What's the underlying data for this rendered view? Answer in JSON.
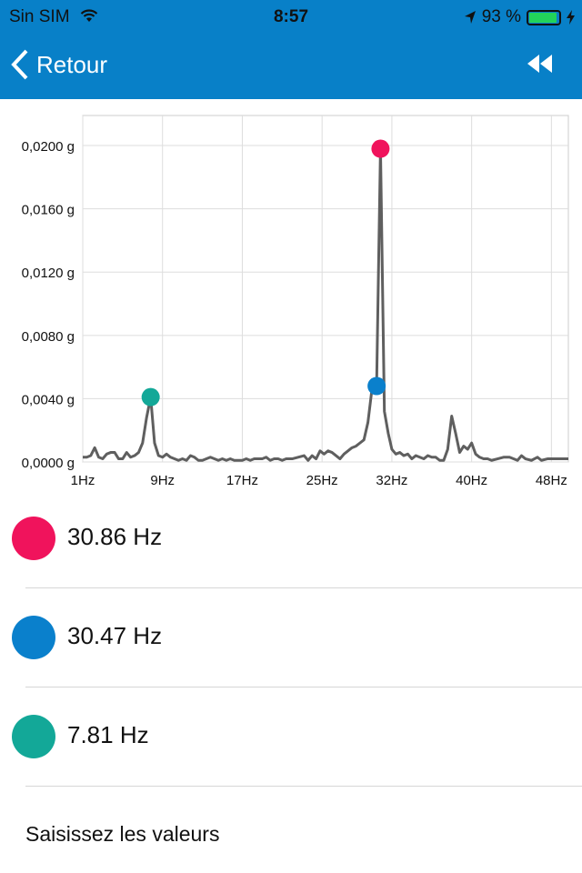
{
  "status_bar": {
    "carrier": "Sin SIM",
    "time": "8:57",
    "battery": "93 %",
    "battery_level": 0.93
  },
  "nav": {
    "back_label": "Retour",
    "rewind_icon": "rewind-icon"
  },
  "colors": {
    "header": "#0880C8",
    "peak1": "#F0135C",
    "peak2": "#0A80CC",
    "peak3": "#13A898",
    "line": "#5f5f5f"
  },
  "chart_data": {
    "type": "line",
    "title": "",
    "xlabel": "",
    "ylabel": "",
    "xlim": [
      1,
      49.7
    ],
    "ylim": [
      0,
      0.0219
    ],
    "x_ticks": [
      {
        "v": 1,
        "label": "1Hz"
      },
      {
        "v": 9,
        "label": "9Hz"
      },
      {
        "v": 17,
        "label": "17Hz"
      },
      {
        "v": 25,
        "label": "25Hz"
      },
      {
        "v": 32,
        "label": "32Hz"
      },
      {
        "v": 40,
        "label": "40Hz"
      },
      {
        "v": 48,
        "label": "48Hz"
      }
    ],
    "y_ticks": [
      {
        "v": 0,
        "label": "0,0000 g"
      },
      {
        "v": 0.004,
        "label": "0,0040 g"
      },
      {
        "v": 0.008,
        "label": "0,0080 g"
      },
      {
        "v": 0.012,
        "label": "0,0120 g"
      },
      {
        "v": 0.016,
        "label": "0,0160 g"
      },
      {
        "v": 0.02,
        "label": "0,0200 g"
      }
    ],
    "grid": true,
    "series": [
      {
        "name": "spectrum",
        "points": [
          [
            1,
            0.0003
          ],
          [
            1.4,
            0.0003
          ],
          [
            1.8,
            0.0004
          ],
          [
            2.2,
            0.0009
          ],
          [
            2.6,
            0.0003
          ],
          [
            3,
            0.0002
          ],
          [
            3.4,
            0.0005
          ],
          [
            3.8,
            0.0006
          ],
          [
            4.2,
            0.0006
          ],
          [
            4.6,
            0.0002
          ],
          [
            5,
            0.0002
          ],
          [
            5.4,
            0.0006
          ],
          [
            5.8,
            0.0003
          ],
          [
            6.2,
            0.0004
          ],
          [
            6.6,
            0.0006
          ],
          [
            7,
            0.0012
          ],
          [
            7.4,
            0.0028
          ],
          [
            7.81,
            0.0041
          ],
          [
            8.2,
            0.0012
          ],
          [
            8.6,
            0.0004
          ],
          [
            9,
            0.0003
          ],
          [
            9.4,
            0.0005
          ],
          [
            9.8,
            0.0003
          ],
          [
            10.2,
            0.0002
          ],
          [
            10.6,
            0.0001
          ],
          [
            11,
            0.0002
          ],
          [
            11.4,
            0.0001
          ],
          [
            11.8,
            0.0004
          ],
          [
            12.2,
            0.0003
          ],
          [
            12.6,
            0.0001
          ],
          [
            13,
            0.0001
          ],
          [
            13.4,
            0.0002
          ],
          [
            13.8,
            0.0003
          ],
          [
            14.2,
            0.0002
          ],
          [
            14.6,
            0.0001
          ],
          [
            15,
            0.0002
          ],
          [
            15.4,
            0.0001
          ],
          [
            15.8,
            0.0002
          ],
          [
            16.2,
            0.0001
          ],
          [
            16.6,
            0.0001
          ],
          [
            17,
            0.0001
          ],
          [
            17.4,
            0.0002
          ],
          [
            17.8,
            0.0001
          ],
          [
            18.2,
            0.0002
          ],
          [
            18.6,
            0.0002
          ],
          [
            19,
            0.0002
          ],
          [
            19.4,
            0.0003
          ],
          [
            19.8,
            0.0001
          ],
          [
            20.2,
            0.0002
          ],
          [
            20.6,
            0.0002
          ],
          [
            21,
            0.0001
          ],
          [
            21.4,
            0.0002
          ],
          [
            22,
            0.0002
          ],
          [
            22.6,
            0.0003
          ],
          [
            23.2,
            0.0004
          ],
          [
            23.6,
            0.0001
          ],
          [
            24,
            0.0004
          ],
          [
            24.4,
            0.0002
          ],
          [
            24.8,
            0.0007
          ],
          [
            25.2,
            0.0005
          ],
          [
            25.6,
            0.0007
          ],
          [
            26,
            0.0006
          ],
          [
            26.4,
            0.0004
          ],
          [
            26.8,
            0.0002
          ],
          [
            27.2,
            0.0005
          ],
          [
            27.6,
            0.0007
          ],
          [
            28,
            0.0009
          ],
          [
            28.4,
            0.001
          ],
          [
            28.8,
            0.0012
          ],
          [
            29.2,
            0.0014
          ],
          [
            29.6,
            0.0025
          ],
          [
            30.08,
            0.005
          ],
          [
            30.47,
            0.0048
          ],
          [
            30.86,
            0.0198
          ],
          [
            31.25,
            0.0032
          ],
          [
            31.64,
            0.0018
          ],
          [
            32,
            0.0008
          ],
          [
            32.4,
            0.0005
          ],
          [
            32.8,
            0.0006
          ],
          [
            33.2,
            0.0004
          ],
          [
            33.6,
            0.0005
          ],
          [
            34,
            0.0002
          ],
          [
            34.4,
            0.0004
          ],
          [
            34.8,
            0.0003
          ],
          [
            35.2,
            0.0002
          ],
          [
            35.6,
            0.0004
          ],
          [
            36,
            0.0003
          ],
          [
            36.4,
            0.0003
          ],
          [
            36.8,
            0.0001
          ],
          [
            37.2,
            0.0001
          ],
          [
            37.6,
            0.0008
          ],
          [
            38,
            0.0029
          ],
          [
            38.4,
            0.0018
          ],
          [
            38.8,
            0.0006
          ],
          [
            39.2,
            0.001
          ],
          [
            39.6,
            0.0008
          ],
          [
            40,
            0.0012
          ],
          [
            40.4,
            0.0005
          ],
          [
            40.8,
            0.0003
          ],
          [
            41.2,
            0.0002
          ],
          [
            41.6,
            0.0002
          ],
          [
            42,
            0.0001
          ],
          [
            42.6,
            0.0002
          ],
          [
            43.2,
            0.0003
          ],
          [
            43.8,
            0.0003
          ],
          [
            44.2,
            0.0002
          ],
          [
            44.6,
            0.0001
          ],
          [
            45,
            0.0004
          ],
          [
            45.4,
            0.0002
          ],
          [
            46,
            0.0001
          ],
          [
            46.6,
            0.0003
          ],
          [
            47,
            0.0001
          ],
          [
            47.6,
            0.0002
          ],
          [
            48.2,
            0.0002
          ],
          [
            48.8,
            0.0002
          ],
          [
            49.7,
            0.0002
          ]
        ]
      }
    ],
    "markers": [
      {
        "x": 30.86,
        "y": 0.0198,
        "color": "#F0135C"
      },
      {
        "x": 30.47,
        "y": 0.0048,
        "color": "#0A80CC"
      },
      {
        "x": 7.81,
        "y": 0.0041,
        "color": "#13A898"
      }
    ]
  },
  "peaks": [
    {
      "label": "30.86 Hz",
      "color": "#F0135C"
    },
    {
      "label": "30.47 Hz",
      "color": "#0A80CC"
    },
    {
      "label": "7.81 Hz",
      "color": "#13A898"
    }
  ],
  "enter_values_label": "Saisissez les valeurs"
}
